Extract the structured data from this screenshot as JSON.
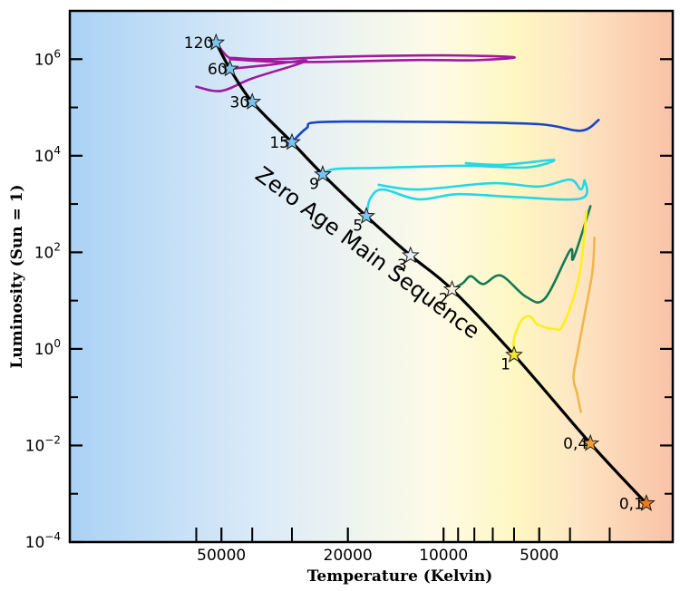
{
  "chart_data": {
    "type": "line",
    "title": "",
    "xlabel": "Temperature (Kelvin)",
    "ylabel": "Luminosity (Sun = 1)",
    "x_scale": "log",
    "x_reversed": true,
    "y_scale": "log",
    "xlim": [
      1900,
      150000
    ],
    "ylim": [
      0.0001,
      10000000
    ],
    "x_major_ticks": [
      50000,
      20000,
      10000,
      5000
    ],
    "x_tick_labels": [
      "50000",
      "20000",
      "10000",
      "5000"
    ],
    "x_minor_ticks": [
      60000,
      40000,
      30000,
      9000,
      8000,
      7000,
      6000,
      4000,
      3000
    ],
    "y_tick_labels": [
      {
        "mantissa": "10",
        "exp": "6",
        "value": 1000000
      },
      {
        "mantissa": "10",
        "exp": "4",
        "value": 10000
      },
      {
        "mantissa": "10",
        "exp": "2",
        "value": 100
      },
      {
        "mantissa": "10",
        "exp": "0",
        "value": 1
      },
      {
        "mantissa": "10",
        "exp": "−2",
        "value": 0.01
      },
      {
        "mantissa": "10",
        "exp": "−4",
        "value": 0.0001
      }
    ],
    "y_minor_ticks": [
      10000000,
      100000,
      1000,
      10,
      0.1,
      0.001
    ],
    "background_gradient": [
      "#aad2f5",
      "#dcebf8",
      "#fdfbe8",
      "#fff7c2",
      "#fde6c3",
      "#f9c2a6"
    ],
    "zams": {
      "label": "Zero Age Main Sequence",
      "color": "#000000",
      "points": [
        {
          "T": 52000,
          "L": 2200000
        },
        {
          "T": 47000,
          "L": 630000
        },
        {
          "T": 40000,
          "L": 130000
        },
        {
          "T": 30000,
          "L": 19000
        },
        {
          "T": 24000,
          "L": 4100
        },
        {
          "T": 17500,
          "L": 560
        },
        {
          "T": 12700,
          "L": 86
        },
        {
          "T": 9400,
          "L": 17
        },
        {
          "T": 6000,
          "L": 0.75
        },
        {
          "T": 3450,
          "L": 0.011
        },
        {
          "T": 2300,
          "L": 0.00063
        }
      ]
    },
    "stars": [
      {
        "mass": "120",
        "T": 52000,
        "L": 2200000,
        "color": "#7ec3ee",
        "label_side": "left"
      },
      {
        "mass": "60",
        "T": 47000,
        "L": 630000,
        "color": "#7ec3ee",
        "label_side": "left"
      },
      {
        "mass": "30",
        "T": 40000,
        "L": 130000,
        "color": "#7ec3ee",
        "label_side": "left"
      },
      {
        "mass": "15",
        "T": 30000,
        "L": 19000,
        "color": "#7ec3ee",
        "label_side": "left"
      },
      {
        "mass": "9",
        "T": 24000,
        "L": 4100,
        "color": "#7ec3ee",
        "label_side": "lower-left"
      },
      {
        "mass": "5",
        "T": 17500,
        "L": 560,
        "color": "#7ec3ee",
        "label_side": "lower-left"
      },
      {
        "mass": "3",
        "T": 12700,
        "L": 86,
        "color": "#e8f0f4",
        "label_side": "lower-left"
      },
      {
        "mass": "2",
        "T": 9400,
        "L": 17,
        "color": "#f6f0de",
        "label_side": "lower-left"
      },
      {
        "mass": "1",
        "T": 6000,
        "L": 0.75,
        "color": "#f2e23a",
        "label_side": "lower-left"
      },
      {
        "mass": "0,4",
        "T": 3450,
        "L": 0.011,
        "color": "#f0a035",
        "label_side": "left"
      },
      {
        "mass": "0,1",
        "T": 2300,
        "L": 0.00063,
        "color": "#ee7a1e",
        "label_side": "left"
      }
    ],
    "tracks": [
      {
        "mass": "120",
        "color": "#a0199e",
        "points": [
          {
            "T": 52000,
            "L": 2200000
          },
          {
            "T": 48000,
            "L": 1150000
          },
          {
            "T": 45000,
            "L": 1050000
          },
          {
            "T": 35000,
            "L": 1000000
          },
          {
            "T": 20000,
            "L": 1130000
          },
          {
            "T": 10000,
            "L": 1200000
          },
          {
            "T": 6000,
            "L": 1100000
          },
          {
            "T": 8000,
            "L": 950000
          },
          {
            "T": 12000,
            "L": 960000
          },
          {
            "T": 30000,
            "L": 870000
          },
          {
            "T": 47000,
            "L": 1000000
          }
        ]
      },
      {
        "mass": "60",
        "color": "#a0199e",
        "points": [
          {
            "T": 47000,
            "L": 630000
          },
          {
            "T": 36000,
            "L": 750000
          },
          {
            "T": 27000,
            "L": 920000
          },
          {
            "T": 40000,
            "L": 400000
          },
          {
            "T": 50000,
            "L": 220000
          },
          {
            "T": 60000,
            "L": 270000
          }
        ]
      },
      {
        "mass": "15",
        "color": "#1845c8",
        "points": [
          {
            "T": 30000,
            "L": 19000
          },
          {
            "T": 27000,
            "L": 37000
          },
          {
            "T": 24000,
            "L": 50000
          },
          {
            "T": 10000,
            "L": 50000
          },
          {
            "T": 5000,
            "L": 45000
          },
          {
            "T": 3700,
            "L": 33000
          },
          {
            "T": 3250,
            "L": 55000
          }
        ]
      },
      {
        "mass": "9",
        "color": "#22d8e6",
        "points": [
          {
            "T": 24000,
            "L": 4100
          },
          {
            "T": 22000,
            "L": 5300
          },
          {
            "T": 16000,
            "L": 5600
          },
          {
            "T": 8500,
            "L": 6200
          },
          {
            "T": 5500,
            "L": 5700
          },
          {
            "T": 4500,
            "L": 8200
          },
          {
            "T": 6500,
            "L": 6500
          },
          {
            "T": 8500,
            "L": 7000
          }
        ]
      },
      {
        "mass": "5",
        "color": "#22d8e6",
        "points": [
          {
            "T": 17500,
            "L": 560
          },
          {
            "T": 17000,
            "L": 1300
          },
          {
            "T": 15500,
            "L": 2000
          },
          {
            "T": 12000,
            "L": 1250
          },
          {
            "T": 9000,
            "L": 1600
          },
          {
            "T": 6000,
            "L": 1400
          },
          {
            "T": 3700,
            "L": 1300
          },
          {
            "T": 3600,
            "L": 3100
          },
          {
            "T": 3700,
            "L": 2000
          },
          {
            "T": 4000,
            "L": 3200
          },
          {
            "T": 5000,
            "L": 2300
          },
          {
            "T": 7000,
            "L": 2700
          },
          {
            "T": 12000,
            "L": 2000
          },
          {
            "T": 16000,
            "L": 2500
          }
        ]
      },
      {
        "mass": "2",
        "color": "#147a55",
        "points": [
          {
            "T": 9400,
            "L": 17
          },
          {
            "T": 8700,
            "L": 23
          },
          {
            "T": 8200,
            "L": 32
          },
          {
            "T": 7500,
            "L": 22
          },
          {
            "T": 6600,
            "L": 33
          },
          {
            "T": 5500,
            "L": 12
          },
          {
            "T": 4800,
            "L": 11
          },
          {
            "T": 4000,
            "L": 110
          },
          {
            "T": 3900,
            "L": 75
          },
          {
            "T": 3450,
            "L": 900
          }
        ]
      },
      {
        "mass": "1",
        "color": "#ffef18",
        "points": [
          {
            "T": 6000,
            "L": 0.75
          },
          {
            "T": 6000,
            "L": 1.6
          },
          {
            "T": 5700,
            "L": 3.8
          },
          {
            "T": 5350,
            "L": 4.7
          },
          {
            "T": 5050,
            "L": 3.2
          },
          {
            "T": 4500,
            "L": 2.6
          },
          {
            "T": 4200,
            "L": 3.2
          },
          {
            "T": 3750,
            "L": 30
          },
          {
            "T": 3550,
            "L": 700
          }
        ]
      },
      {
        "mass": "0,4",
        "color": "#f2b64a",
        "points": [
          {
            "T": 3700,
            "L": 0.05
          },
          {
            "T": 3800,
            "L": 0.12
          },
          {
            "T": 3900,
            "L": 0.26
          },
          {
            "T": 3780,
            "L": 0.9
          },
          {
            "T": 3600,
            "L": 5
          },
          {
            "T": 3400,
            "L": 40
          },
          {
            "T": 3350,
            "L": 200
          }
        ]
      }
    ]
  }
}
